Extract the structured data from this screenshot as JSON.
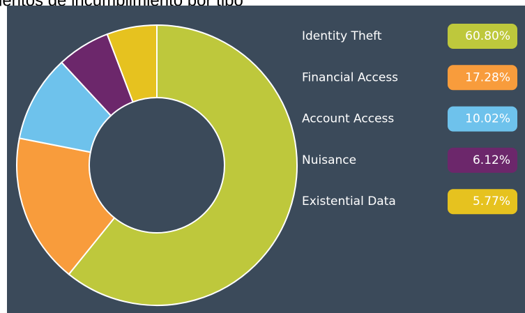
{
  "chart_data": {
    "type": "donut",
    "title": "ientos de incumplimiento por tipo",
    "categories": [
      "Identity Theft",
      "Financial Access",
      "Account Access",
      "Nuisance",
      "Existential Data"
    ],
    "values": [
      60.8,
      17.28,
      10.02,
      6.12,
      5.77
    ],
    "value_labels": [
      "60.80%",
      "17.28%",
      "10.02%",
      "6.12%",
      "5.77%"
    ],
    "colors": [
      "#bec83c",
      "#f89c3c",
      "#6ec2ec",
      "#6c276b",
      "#e6c21f"
    ],
    "legend": "right"
  }
}
